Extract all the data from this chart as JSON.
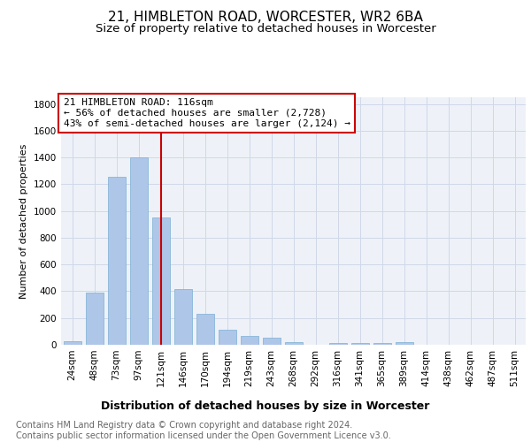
{
  "title": "21, HIMBLETON ROAD, WORCESTER, WR2 6BA",
  "subtitle": "Size of property relative to detached houses in Worcester",
  "xlabel": "Distribution of detached houses by size in Worcester",
  "ylabel": "Number of detached properties",
  "footnote1": "Contains HM Land Registry data © Crown copyright and database right 2024.",
  "footnote2": "Contains public sector information licensed under the Open Government Licence v3.0.",
  "annotation_line1": "21 HIMBLETON ROAD: 116sqm",
  "annotation_line2": "← 56% of detached houses are smaller (2,728)",
  "annotation_line3": "43% of semi-detached houses are larger (2,124) →",
  "bar_labels": [
    "24sqm",
    "48sqm",
    "73sqm",
    "97sqm",
    "121sqm",
    "146sqm",
    "170sqm",
    "194sqm",
    "219sqm",
    "243sqm",
    "268sqm",
    "292sqm",
    "316sqm",
    "341sqm",
    "365sqm",
    "389sqm",
    "414sqm",
    "438sqm",
    "462sqm",
    "487sqm",
    "511sqm"
  ],
  "bar_values": [
    25,
    390,
    1255,
    1400,
    950,
    415,
    230,
    115,
    65,
    50,
    20,
    0,
    15,
    10,
    10,
    20,
    0,
    0,
    0,
    0,
    0
  ],
  "bar_width": 0.8,
  "bar_color": "#aec6e8",
  "bar_edgecolor": "#7aafd4",
  "bar_linewidth": 0.5,
  "vline_x": 4,
  "vline_color": "#cc0000",
  "vline_linewidth": 1.5,
  "ylim": [
    0,
    1850
  ],
  "yticks": [
    0,
    200,
    400,
    600,
    800,
    1000,
    1200,
    1400,
    1600,
    1800
  ],
  "grid_color": "#d0d8e8",
  "plot_background": "#eef2f8",
  "annotation_box_edgecolor": "#cc0000",
  "annotation_box_facecolor": "white",
  "title_fontsize": 11,
  "subtitle_fontsize": 9.5,
  "annotation_fontsize": 8,
  "ylabel_fontsize": 8,
  "tick_fontsize": 7.5,
  "xlabel_fontsize": 9
}
